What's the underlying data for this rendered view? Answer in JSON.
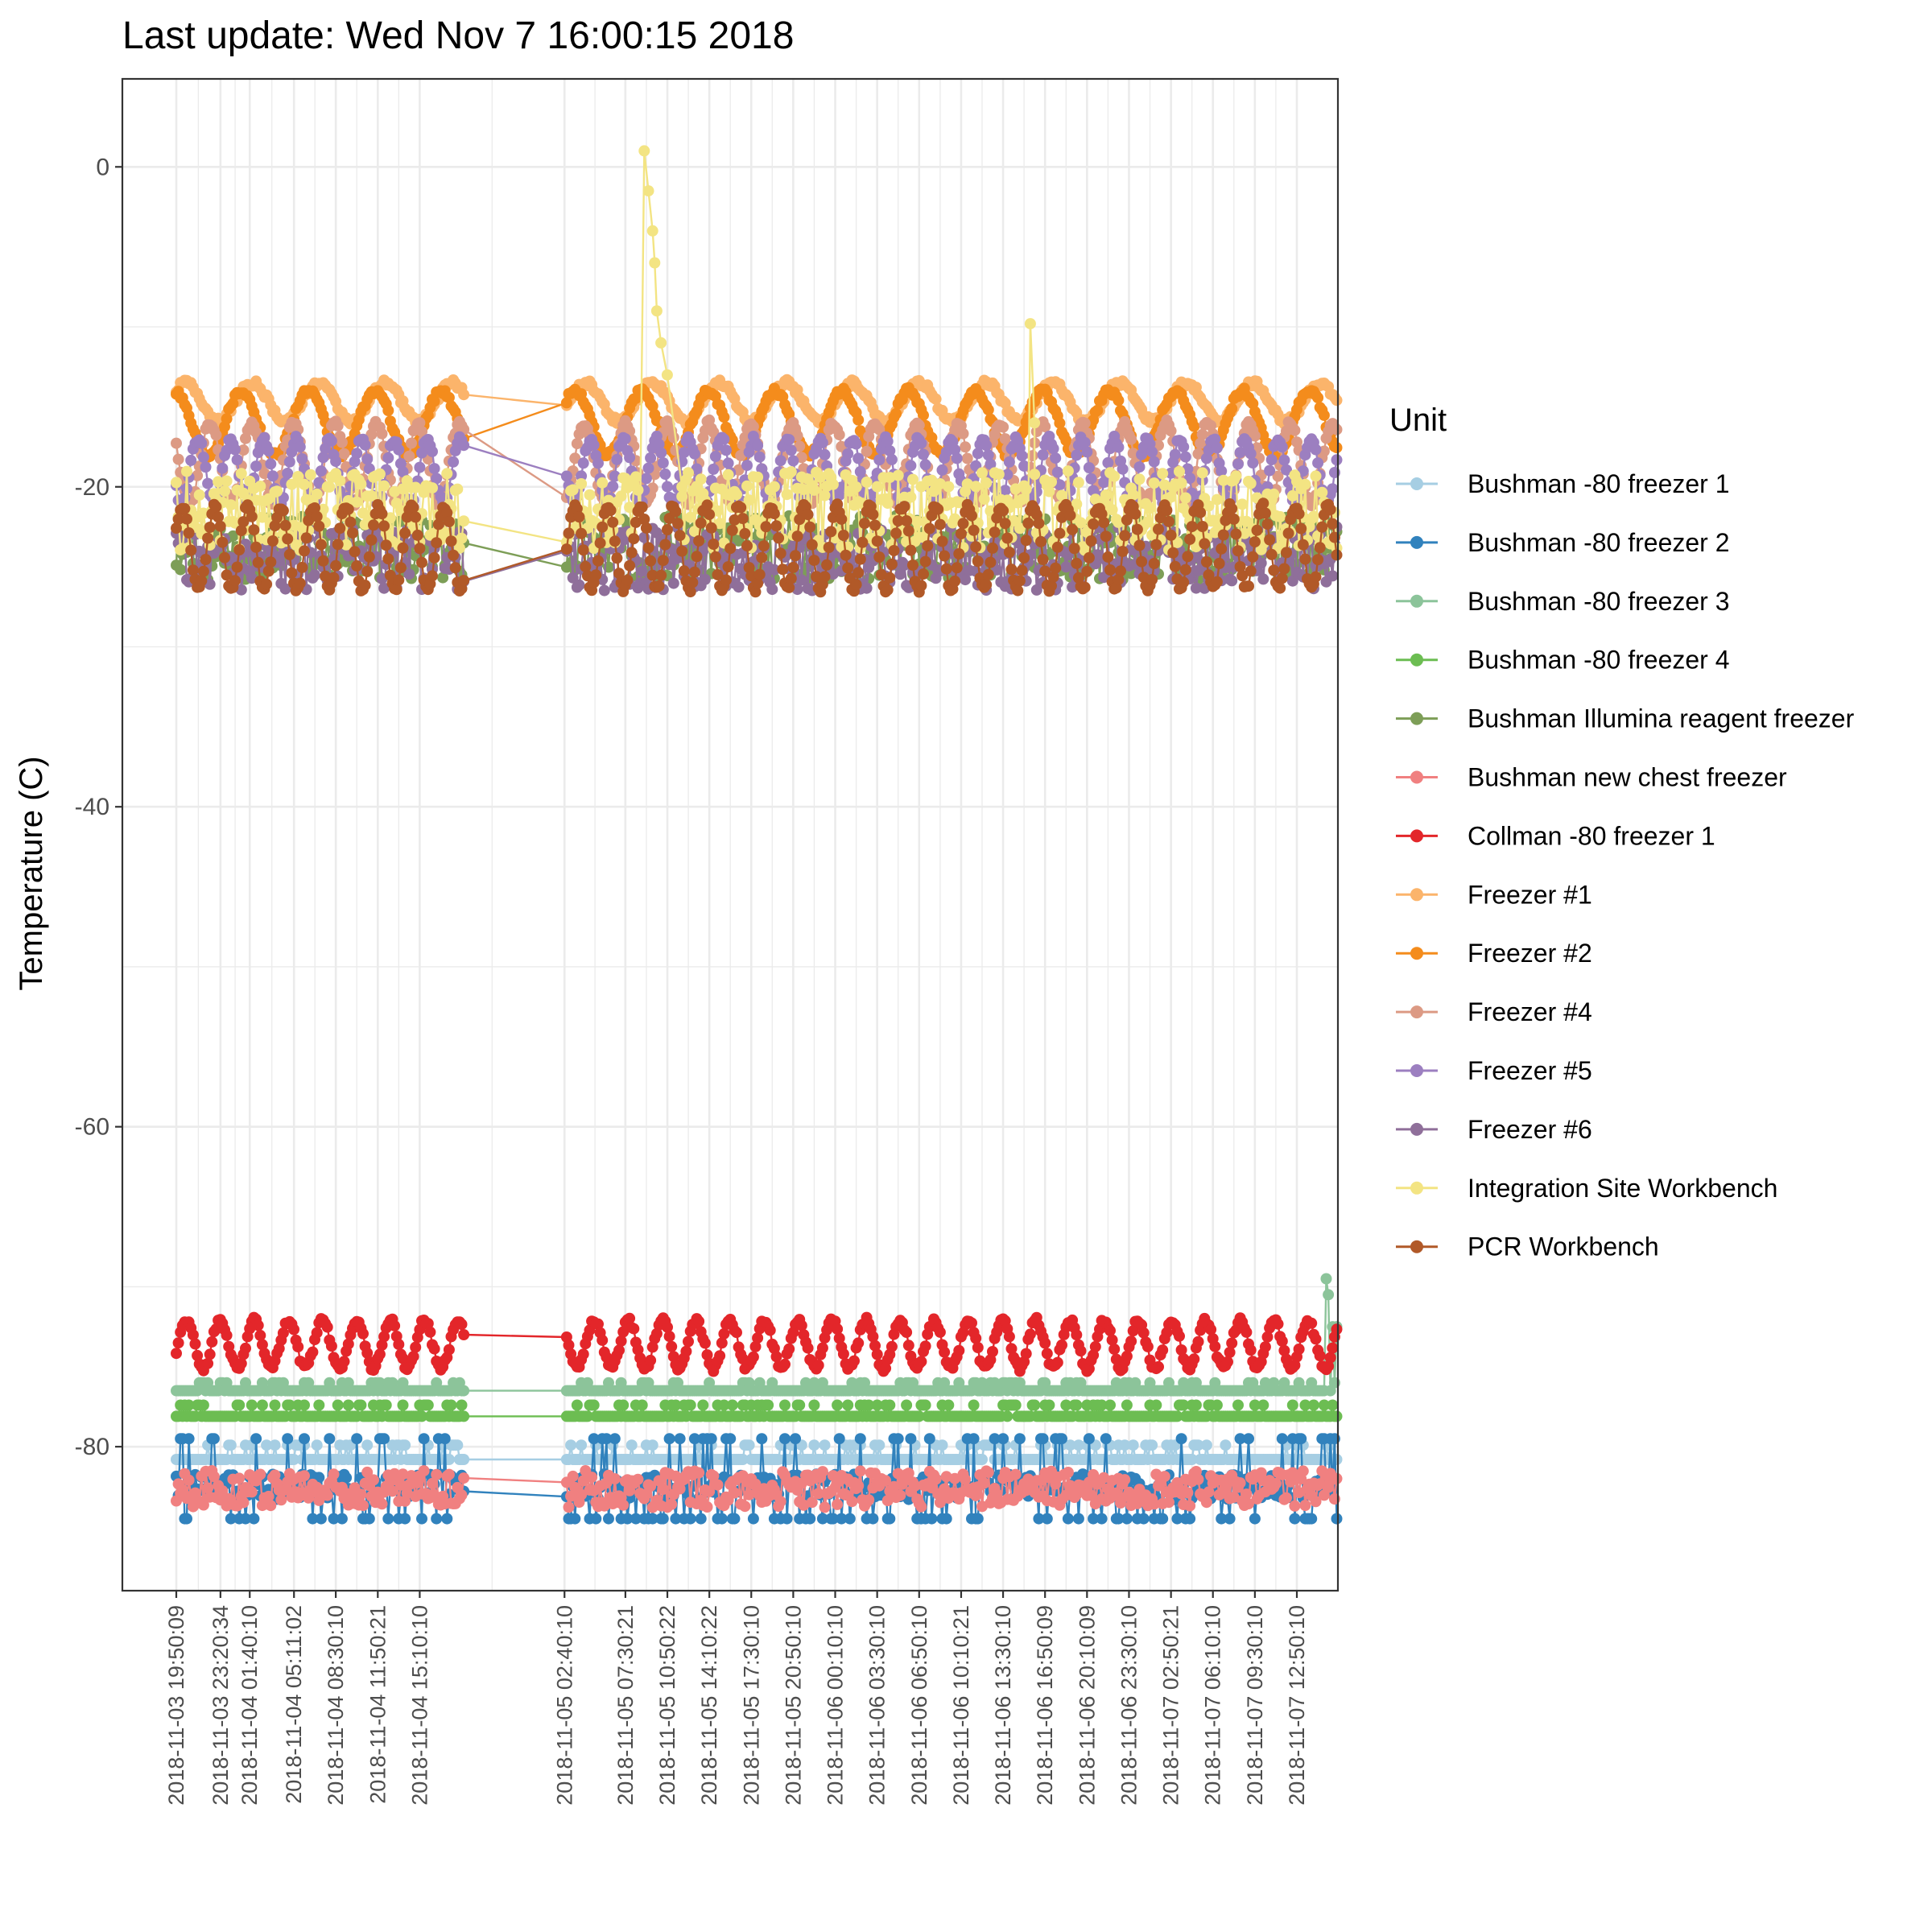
{
  "chart_data": {
    "type": "line",
    "title": "Last update: Wed Nov  7 16:00:15 2018",
    "xlabel": "",
    "ylabel": "Temperature (C)",
    "ylim": [
      -89,
      5.5
    ],
    "yticks": [
      0,
      -20,
      -40,
      -60,
      -80
    ],
    "grid": true,
    "x_start": "2018-11-03 19:50:09",
    "x_end": "2018-11-07 16:00:15",
    "x_gap": [
      "2018-11-04 18:50:00",
      "2018-11-05 02:40:10"
    ],
    "xticks": [
      "2018-11-03 19:50:09",
      "2018-11-03 23:20:34",
      "2018-11-04 01:40:10",
      "2018-11-04 05:11:02",
      "2018-11-04 08:30:10",
      "2018-11-04 11:50:21",
      "2018-11-04 15:10:10",
      "2018-11-05 02:40:10",
      "2018-11-05 07:30:21",
      "2018-11-05 10:50:22",
      "2018-11-05 14:10:22",
      "2018-11-05 17:30:10",
      "2018-11-05 20:50:10",
      "2018-11-06 00:10:10",
      "2018-11-06 03:30:10",
      "2018-11-06 06:50:10",
      "2018-11-06 10:10:21",
      "2018-11-06 13:30:10",
      "2018-11-06 16:50:09",
      "2018-11-06 20:10:09",
      "2018-11-06 23:30:10",
      "2018-11-07 02:50:21",
      "2018-11-07 06:10:10",
      "2018-11-07 09:30:10",
      "2018-11-07 12:50:10"
    ],
    "legend": {
      "title": "Unit",
      "position": "right"
    },
    "series": [
      {
        "name": "Bushman -80 freezer 1",
        "color": "#a6cee3",
        "pattern": "steps",
        "base": -80.8,
        "levels": [
          -80.8,
          -79.9
        ],
        "period_hours": 0,
        "amplitude": 0
      },
      {
        "name": "Bushman -80 freezer 2",
        "color": "#3182bd",
        "pattern": "spiky",
        "base": -82.5,
        "levels": [
          -84.5,
          -79.5
        ],
        "period_hours": 0,
        "amplitude": 0
      },
      {
        "name": "Bushman -80 freezer 3",
        "color": "#8cc49a",
        "pattern": "steps",
        "base": -76.5,
        "levels": [
          -76.5,
          -76.0
        ],
        "period_hours": 0,
        "amplitude": 0,
        "end_rise": [
          -69.5,
          -72.5
        ]
      },
      {
        "name": "Bushman -80 freezer 4",
        "color": "#6cbd52",
        "pattern": "steps",
        "base": -77.8,
        "levels": [
          -78.1,
          -77.4
        ],
        "period_hours": 0,
        "amplitude": 0
      },
      {
        "name": "Bushman Illumina reagent freezer",
        "color": "#7d9e57",
        "pattern": "noise",
        "base": -23.8,
        "levels": [
          -25.8,
          -21.8
        ],
        "period_hours": 0,
        "amplitude": 0
      },
      {
        "name": "Bushman new chest freezer",
        "color": "#f08080",
        "pattern": "noise",
        "base": -82.5,
        "levels": [
          -83.8,
          -81.5
        ],
        "period_hours": 0,
        "amplitude": 0
      },
      {
        "name": "Collman -80 freezer 1",
        "color": "#e3262a",
        "pattern": "sine",
        "base": -73.6,
        "levels": [
          -75.0,
          -72.0
        ],
        "period_hours": 2.7,
        "amplitude": 1.5
      },
      {
        "name": "Freezer #1",
        "color": "#fbb46b",
        "pattern": "sine",
        "base": -14.7,
        "levels": [
          -16.0,
          -13.5
        ],
        "period_hours": 5.3,
        "amplitude": 1.2
      },
      {
        "name": "Freezer #2",
        "color": "#f48c1c",
        "pattern": "sine",
        "base": -16.0,
        "levels": [
          -18.0,
          -14.0
        ],
        "period_hours": 5.3,
        "amplitude": 2.0
      },
      {
        "name": "Freezer #4",
        "color": "#dc9a84",
        "pattern": "sine",
        "base": -18.5,
        "levels": [
          -21.0,
          -16.0
        ],
        "period_hours": 3.3,
        "amplitude": 2.5
      },
      {
        "name": "Freezer #5",
        "color": "#9c7fc0",
        "pattern": "sine",
        "base": -19.0,
        "levels": [
          -21.0,
          -17.0
        ],
        "period_hours": 2.6,
        "amplitude": 2.0
      },
      {
        "name": "Freezer #6",
        "color": "#8f6f9a",
        "pattern": "noise",
        "base": -24.5,
        "levels": [
          -26.5,
          -22.5
        ],
        "period_hours": 0,
        "amplitude": 0
      },
      {
        "name": "Integration Site Workbench",
        "color": "#f3e483",
        "pattern": "noise",
        "base": -21.5,
        "levels": [
          -24.0,
          -19.0
        ],
        "period_hours": 0,
        "amplitude": 0,
        "spike": {
          "x": [
            "2018-11-05 08:40:00",
            "2018-11-05 09:00:00",
            "2018-11-05 09:20:00",
            "2018-11-05 09:40:00",
            "2018-11-05 09:50:00",
            "2018-11-05 10:00:00",
            "2018-11-05 10:20:00",
            "2018-11-05 10:50:00",
            "2018-11-05 12:00:00"
          ],
          "y": [
            -22,
            1,
            -1.5,
            -4,
            -6,
            -9,
            -11,
            -13,
            -20
          ]
        },
        "spike2": {
          "x": [
            "2018-11-06 15:30:00",
            "2018-11-06 15:40:00",
            "2018-11-06 16:00:00"
          ],
          "y": [
            -22,
            -9.8,
            -16
          ]
        }
      },
      {
        "name": "PCR Workbench",
        "color": "#b15928",
        "pattern": "sine",
        "base": -23.8,
        "levels": [
          -26.5,
          -21.0
        ],
        "period_hours": 2.6,
        "amplitude": 2.6
      }
    ]
  }
}
